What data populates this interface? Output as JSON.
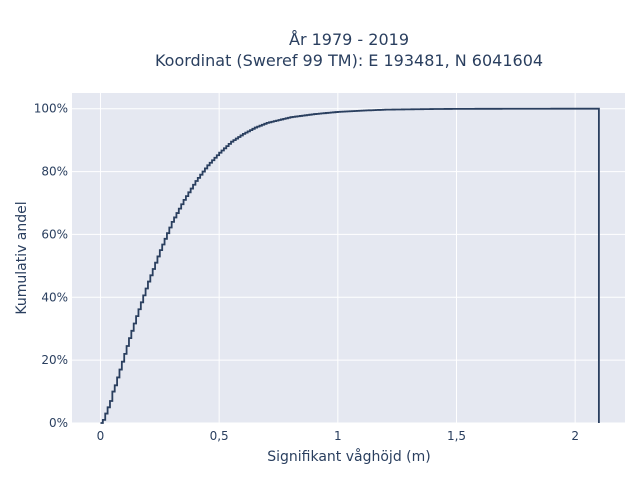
{
  "chart_data": {
    "type": "line",
    "line_shape": "step",
    "title_lines": [
      "År 1979 - 2019",
      "Koordinat (Sweref 99 TM): E 193481, N 6041604"
    ],
    "xlabel": "Signifikant våghöjd (m)",
    "ylabel": "Kumulativ andel",
    "xlim": [
      -0.12,
      2.21
    ],
    "ylim": [
      0,
      1.05
    ],
    "x_ticks": [
      0,
      0.5,
      1,
      1.5,
      2
    ],
    "x_tick_labels": [
      "0",
      "0,5",
      "1",
      "1,5",
      "2"
    ],
    "y_ticks": [
      0,
      0.2,
      0.4,
      0.6,
      0.8,
      1.0
    ],
    "y_tick_labels": [
      "0%",
      "20%",
      "40%",
      "60%",
      "80%",
      "100%"
    ],
    "grid": true,
    "colors": {
      "plot_bg": "#e5e8f1",
      "grid": "#ffffff",
      "line": "#2a3f5f",
      "text": "#2a3f5f"
    },
    "series": [
      {
        "x": [
          0,
          0.01,
          0.02,
          0.03,
          0.04,
          0.05,
          0.06,
          0.08,
          0.1,
          0.12,
          0.15,
          0.2,
          0.25,
          0.3,
          0.35,
          0.4,
          0.45,
          0.5,
          0.55,
          0.6,
          0.65,
          0.7,
          0.8,
          0.9,
          1.0,
          1.1,
          1.2,
          1.3,
          1.4,
          1.5,
          1.7,
          1.9,
          2.1,
          2.1
        ],
        "y": [
          0.0,
          0.01,
          0.03,
          0.05,
          0.07,
          0.1,
          0.12,
          0.17,
          0.22,
          0.27,
          0.34,
          0.45,
          0.55,
          0.64,
          0.71,
          0.77,
          0.82,
          0.86,
          0.895,
          0.92,
          0.94,
          0.955,
          0.973,
          0.983,
          0.99,
          0.994,
          0.997,
          0.998,
          0.999,
          0.9995,
          0.9998,
          1.0,
          1.0,
          0.0
        ]
      }
    ]
  }
}
